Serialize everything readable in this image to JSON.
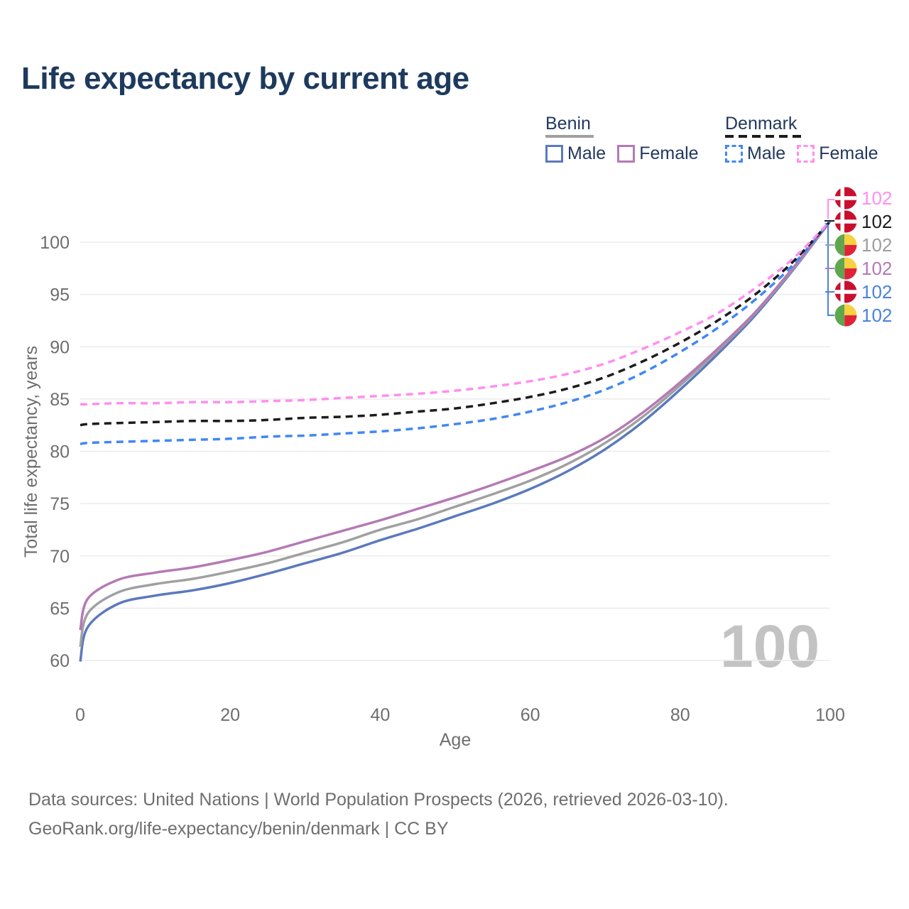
{
  "title": "Life expectancy by current age",
  "legend": {
    "benin": {
      "title": "Benin",
      "male": "Male",
      "female": "Female"
    },
    "denmark": {
      "title": "Denmark",
      "male": "Male",
      "female": "Female"
    }
  },
  "watermark": "100",
  "footer": {
    "line1": "Data sources: United Nations | World Population Prospects (2026, retrieved 2026-03-10).",
    "line2": "GeoRank.org/life-expectancy/benin/denmark | CC BY"
  },
  "colors": {
    "title_text": "#1d3a5e",
    "legend_text": "#22385e",
    "axis_text": "#6e6e6e",
    "grid": "#ebebeb",
    "watermark": "#c3c3c3",
    "benin_male": "#5b7abd",
    "benin_female": "#b47ab4",
    "benin_total": "#a0a0a0",
    "denmark_male": "#4187f5",
    "denmark_female": "#ff8ef0",
    "denmark_total": "#1c1c1c",
    "end_label_blue": "#4b82dd",
    "flag_denmark_red": "#c8102e",
    "flag_benin_green": "#5fa74e",
    "flag_benin_yellow": "#f9d03f",
    "flag_benin_red": "#e02339"
  },
  "chart_data": {
    "type": "line",
    "title": "Life expectancy by current age",
    "xlabel": "Age",
    "ylabel": "Total life expectancy, years",
    "xlim": [
      0,
      100
    ],
    "ylim": [
      60,
      100
    ],
    "x_ticks": [
      0,
      20,
      40,
      60,
      80,
      100
    ],
    "y_ticks": [
      60,
      65,
      70,
      75,
      80,
      85,
      90,
      95,
      100
    ],
    "grid": "horizontal",
    "legend_position": "top-right",
    "x": [
      0,
      1,
      5,
      10,
      15,
      20,
      25,
      30,
      35,
      40,
      45,
      50,
      55,
      60,
      65,
      70,
      75,
      80,
      85,
      90,
      95,
      100
    ],
    "series": [
      {
        "id": "benin_male",
        "name": "Benin Male",
        "country": "Benin",
        "sex": "Male",
        "style": "solid",
        "color": "#5b7abd",
        "values": [
          59.9,
          63.2,
          65.4,
          66.2,
          66.7,
          67.4,
          68.3,
          69.3,
          70.3,
          71.5,
          72.6,
          73.8,
          75.0,
          76.4,
          78.1,
          80.2,
          82.8,
          85.9,
          89.3,
          93.0,
          97.3,
          102
        ]
      },
      {
        "id": "benin_total",
        "name": "Benin",
        "country": "Benin",
        "sex": "Both",
        "style": "solid",
        "color": "#a0a0a0",
        "values": [
          61.3,
          64.5,
          66.5,
          67.3,
          67.8,
          68.5,
          69.3,
          70.3,
          71.3,
          72.5,
          73.5,
          74.7,
          75.9,
          77.2,
          78.8,
          80.8,
          83.3,
          86.3,
          89.6,
          93.2,
          97.4,
          102
        ]
      },
      {
        "id": "benin_female",
        "name": "Benin Female",
        "country": "Benin",
        "sex": "Female",
        "style": "solid",
        "color": "#b47ab4",
        "values": [
          62.9,
          65.9,
          67.7,
          68.4,
          68.9,
          69.6,
          70.4,
          71.4,
          72.4,
          73.4,
          74.5,
          75.6,
          76.8,
          78.1,
          79.5,
          81.3,
          83.7,
          86.6,
          89.8,
          93.3,
          97.5,
          102
        ]
      },
      {
        "id": "denmark_male",
        "name": "Denmark Male",
        "country": "Denmark",
        "sex": "Male",
        "style": "dashed",
        "color": "#4187f5",
        "values": [
          80.7,
          80.8,
          80.9,
          81.0,
          81.1,
          81.2,
          81.4,
          81.5,
          81.7,
          81.9,
          82.2,
          82.6,
          83.1,
          83.8,
          84.7,
          85.9,
          87.5,
          89.5,
          91.8,
          94.5,
          97.8,
          102
        ]
      },
      {
        "id": "denmark_total",
        "name": "Denmark",
        "country": "Denmark",
        "sex": "Both",
        "style": "dashed",
        "color": "#1c1c1c",
        "values": [
          82.5,
          82.6,
          82.7,
          82.8,
          82.9,
          82.9,
          83.0,
          83.2,
          83.3,
          83.5,
          83.8,
          84.1,
          84.6,
          85.2,
          86.0,
          87.1,
          88.6,
          90.4,
          92.5,
          95.0,
          98.1,
          102
        ]
      },
      {
        "id": "denmark_female",
        "name": "Denmark Female",
        "country": "Denmark",
        "sex": "Female",
        "style": "dashed",
        "color": "#ff8ef0",
        "values": [
          84.5,
          84.5,
          84.6,
          84.6,
          84.7,
          84.7,
          84.8,
          84.9,
          85.1,
          85.3,
          85.5,
          85.8,
          86.2,
          86.7,
          87.4,
          88.4,
          89.8,
          91.4,
          93.2,
          95.6,
          98.4,
          102
        ]
      }
    ],
    "end_labels": [
      {
        "text": "102",
        "flag": "denmark",
        "color": "#ff8ef0",
        "series": "Denmark Female"
      },
      {
        "text": "102",
        "flag": "denmark",
        "color": "#1c1c1c",
        "series": "Denmark"
      },
      {
        "text": "102",
        "flag": "benin",
        "color": "#9e9e9e",
        "series": "Benin"
      },
      {
        "text": "102",
        "flag": "benin",
        "color": "#b47ab4",
        "series": "Benin Female"
      },
      {
        "text": "102",
        "flag": "denmark",
        "color": "#4b82dd",
        "series": "Denmark Male"
      },
      {
        "text": "102",
        "flag": "benin",
        "color": "#4b82dd",
        "series": "Benin Male"
      }
    ]
  }
}
